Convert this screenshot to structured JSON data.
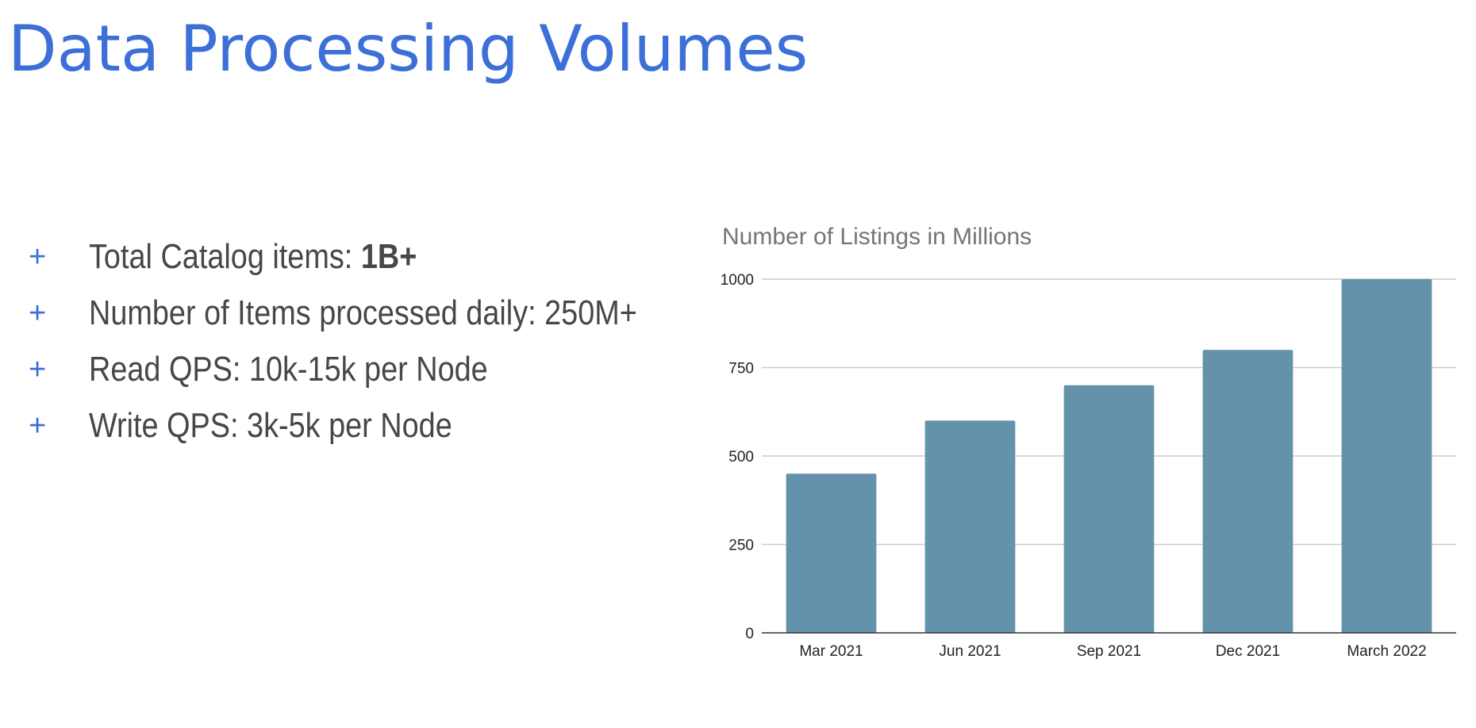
{
  "slide": {
    "title": "Data Processing Volumes"
  },
  "bullets": [
    {
      "text": "Total Catalog items: ",
      "bold": "1B+"
    },
    {
      "text": "Number of Items processed daily: 250M+",
      "bold": ""
    },
    {
      "text": "Read QPS: 10k-15k per Node",
      "bold": ""
    },
    {
      "text": "Write QPS: 3k-5k per Node",
      "bold": ""
    }
  ],
  "bullet_icon": "plus-icon",
  "colors": {
    "accent": "#3c6fd8",
    "text": "#474747",
    "bar": "#6492aa",
    "grid": "#cccccc",
    "axis": "#333333",
    "chart_title": "#757575"
  },
  "chart_data": {
    "type": "bar",
    "title": "Number of Listings in Millions",
    "categories": [
      "Mar 2021",
      "Jun 2021",
      "Sep 2021",
      "Dec 2021",
      "March 2022"
    ],
    "values": [
      450,
      600,
      700,
      800,
      1000
    ],
    "xlabel": "",
    "ylabel": "",
    "ylim": [
      0,
      1000
    ],
    "yticks": [
      0,
      250,
      500,
      750,
      1000
    ],
    "grid": true,
    "legend": "none"
  }
}
